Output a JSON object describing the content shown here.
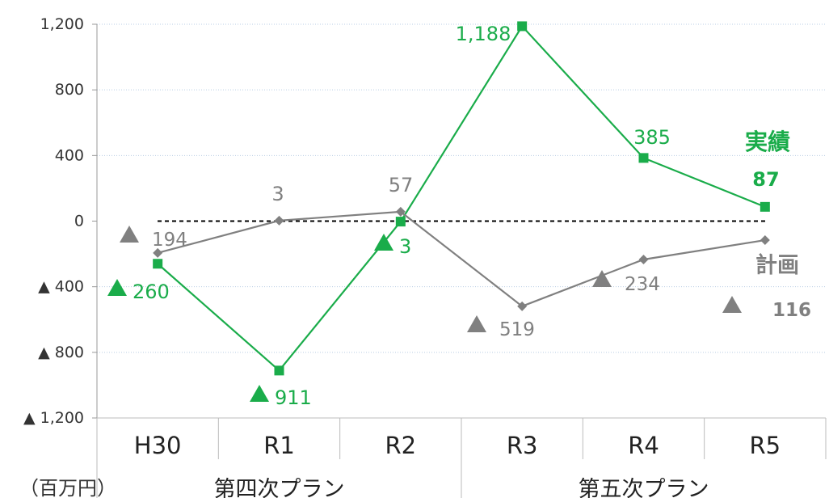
{
  "chart_data": {
    "type": "line",
    "unit": "（百万円）",
    "categories": [
      "H30",
      "R1",
      "R2",
      "R3",
      "R4",
      "R5"
    ],
    "groups": [
      {
        "label": "第四次プラン",
        "span": [
          0,
          2
        ]
      },
      {
        "label": "第五次プラン",
        "span": [
          3,
          5
        ]
      }
    ],
    "ylim": [
      -1200,
      1200
    ],
    "yticks": [
      1200,
      800,
      400,
      0,
      -400,
      -800,
      -1200
    ],
    "ytick_labels": [
      "1,200",
      "800",
      "400",
      "0",
      "▲ 400",
      "▲ 800",
      "▲ 1,200"
    ],
    "zero_line": "dashed",
    "grid": "horizontal dotted",
    "series": [
      {
        "name": "実績",
        "color": "#1aac4a",
        "marker": "square",
        "values": [
          -260,
          -911,
          -3,
          1188,
          385,
          87
        ],
        "labels": [
          "260",
          "911",
          "3",
          "1,188",
          "385",
          "87"
        ],
        "negative_mark": "▲"
      },
      {
        "name": "計画",
        "color": "#808080",
        "marker": "diamond",
        "values": [
          -194,
          3,
          57,
          -519,
          -234,
          -116
        ],
        "labels": [
          "194",
          "3",
          "57",
          "519",
          "234",
          "116"
        ],
        "negative_mark": "▲"
      }
    ]
  }
}
